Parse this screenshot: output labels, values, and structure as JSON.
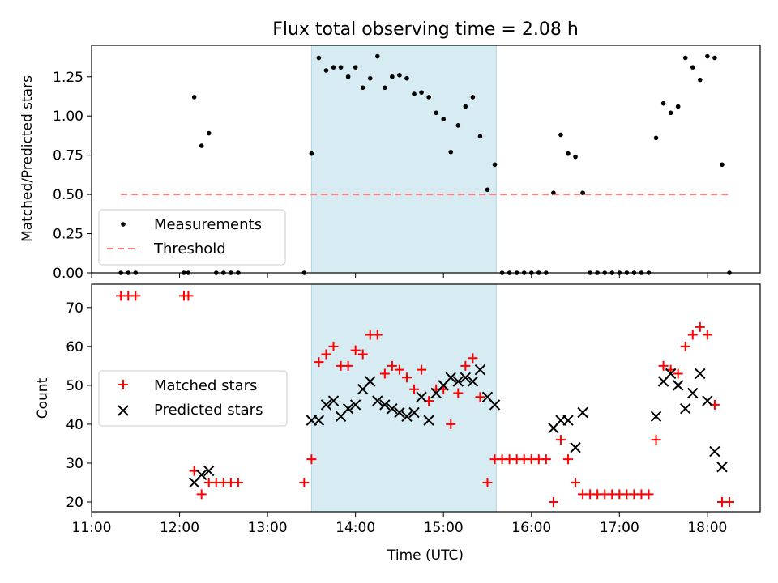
{
  "figure": {
    "title": "Flux total observing time = 2.08 h"
  },
  "colors": {
    "measurement": "#000000",
    "threshold": "#ff7f7f",
    "matched": "#ff0000",
    "predicted": "#000000",
    "shade": "#add8e6"
  },
  "chart_data": [
    {
      "type": "scatter",
      "title": "Flux total observing time = 2.08 h",
      "xlabel": "",
      "ylabel": "Matched/Predicted stars",
      "xlim": [
        "11:00",
        "18:36"
      ],
      "ylim": [
        0,
        1.45
      ],
      "yticks": [
        "0.00",
        "0.25",
        "0.50",
        "0.75",
        "1.00",
        "1.25"
      ],
      "xticks": [
        "11:00",
        "12:00",
        "13:00",
        "14:00",
        "15:00",
        "16:00",
        "17:00",
        "18:00"
      ],
      "shaded_interval": [
        "13:30",
        "15:36"
      ],
      "legend": {
        "position": "lower-left",
        "entries": [
          "Measurements",
          "Threshold"
        ]
      },
      "series": [
        {
          "name": "Measurements",
          "marker": "dot",
          "points": [
            [
              "11:20",
              0
            ],
            [
              "11:25",
              0
            ],
            [
              "11:30",
              0
            ],
            [
              "12:03",
              0
            ],
            [
              "12:06",
              0
            ],
            [
              "12:10",
              1.12
            ],
            [
              "12:15",
              0.81
            ],
            [
              "12:20",
              0.89
            ],
            [
              "12:25",
              0
            ],
            [
              "12:30",
              0
            ],
            [
              "12:35",
              0
            ],
            [
              "12:40",
              0
            ],
            [
              "13:25",
              0
            ],
            [
              "13:30",
              0.76
            ],
            [
              "13:35",
              1.37
            ],
            [
              "13:40",
              1.29
            ],
            [
              "13:45",
              1.31
            ],
            [
              "13:50",
              1.31
            ],
            [
              "13:55",
              1.25
            ],
            [
              "14:00",
              1.31
            ],
            [
              "14:05",
              1.18
            ],
            [
              "14:10",
              1.24
            ],
            [
              "14:15",
              1.38
            ],
            [
              "14:20",
              1.18
            ],
            [
              "14:25",
              1.25
            ],
            [
              "14:30",
              1.26
            ],
            [
              "14:35",
              1.24
            ],
            [
              "14:40",
              1.14
            ],
            [
              "14:45",
              1.15
            ],
            [
              "14:50",
              1.12
            ],
            [
              "14:55",
              1.02
            ],
            [
              "15:00",
              0.98
            ],
            [
              "15:05",
              0.77
            ],
            [
              "15:10",
              0.94
            ],
            [
              "15:15",
              1.06
            ],
            [
              "15:20",
              1.12
            ],
            [
              "15:25",
              0.87
            ],
            [
              "15:30",
              0.53
            ],
            [
              "15:35",
              0.69
            ],
            [
              "15:40",
              0
            ],
            [
              "15:45",
              0
            ],
            [
              "15:50",
              0
            ],
            [
              "15:55",
              0
            ],
            [
              "16:00",
              0
            ],
            [
              "16:05",
              0
            ],
            [
              "16:10",
              0
            ],
            [
              "16:15",
              0.51
            ],
            [
              "16:20",
              0.88
            ],
            [
              "16:25",
              0.76
            ],
            [
              "16:30",
              0.74
            ],
            [
              "16:35",
              0.51
            ],
            [
              "16:40",
              0
            ],
            [
              "16:45",
              0
            ],
            [
              "16:50",
              0
            ],
            [
              "16:55",
              0
            ],
            [
              "17:00",
              0
            ],
            [
              "17:05",
              0
            ],
            [
              "17:10",
              0
            ],
            [
              "17:15",
              0
            ],
            [
              "17:20",
              0
            ],
            [
              "17:25",
              0.86
            ],
            [
              "17:30",
              1.08
            ],
            [
              "17:35",
              1.02
            ],
            [
              "17:40",
              1.06
            ],
            [
              "17:45",
              1.37
            ],
            [
              "17:50",
              1.31
            ],
            [
              "17:55",
              1.23
            ],
            [
              "18:00",
              1.38
            ],
            [
              "18:05",
              1.37
            ],
            [
              "18:10",
              0.69
            ],
            [
              "18:15",
              0
            ]
          ]
        },
        {
          "name": "Threshold",
          "style": "dashed-line",
          "points": [
            [
              "11:20",
              0.5
            ],
            [
              "18:15",
              0.5
            ]
          ]
        }
      ]
    },
    {
      "type": "scatter",
      "title": "",
      "xlabel": "Time (UTC)",
      "ylabel": "Count",
      "xlim": [
        "11:00",
        "18:36"
      ],
      "ylim": [
        17.5,
        76
      ],
      "yticks": [
        "20",
        "30",
        "40",
        "50",
        "60",
        "70"
      ],
      "xticks": [
        "11:00",
        "12:00",
        "13:00",
        "14:00",
        "15:00",
        "16:00",
        "17:00",
        "18:00"
      ],
      "shaded_interval": [
        "13:30",
        "15:36"
      ],
      "legend": {
        "position": "center-left",
        "entries": [
          "Matched stars",
          "Predicted stars"
        ]
      },
      "series": [
        {
          "name": "Matched stars",
          "marker": "plus",
          "points": [
            [
              "11:20",
              73
            ],
            [
              "11:25",
              73
            ],
            [
              "11:30",
              73
            ],
            [
              "12:03",
              73
            ],
            [
              "12:06",
              73
            ],
            [
              "12:10",
              28
            ],
            [
              "12:15",
              22
            ],
            [
              "12:20",
              25
            ],
            [
              "12:25",
              25
            ],
            [
              "12:30",
              25
            ],
            [
              "12:35",
              25
            ],
            [
              "12:40",
              25
            ],
            [
              "13:25",
              25
            ],
            [
              "13:30",
              31
            ],
            [
              "13:35",
              56
            ],
            [
              "13:40",
              58
            ],
            [
              "13:45",
              60
            ],
            [
              "13:50",
              55
            ],
            [
              "13:55",
              55
            ],
            [
              "14:00",
              59
            ],
            [
              "14:05",
              58
            ],
            [
              "14:10",
              63
            ],
            [
              "14:15",
              63
            ],
            [
              "14:20",
              53
            ],
            [
              "14:25",
              55
            ],
            [
              "14:30",
              54
            ],
            [
              "14:35",
              52
            ],
            [
              "14:40",
              49
            ],
            [
              "14:45",
              54
            ],
            [
              "14:50",
              46
            ],
            [
              "14:55",
              49
            ],
            [
              "15:00",
              49
            ],
            [
              "15:05",
              40
            ],
            [
              "15:10",
              48
            ],
            [
              "15:15",
              55
            ],
            [
              "15:20",
              57
            ],
            [
              "15:25",
              47
            ],
            [
              "15:30",
              25
            ],
            [
              "15:35",
              31
            ],
            [
              "15:40",
              31
            ],
            [
              "15:45",
              31
            ],
            [
              "15:50",
              31
            ],
            [
              "15:55",
              31
            ],
            [
              "16:00",
              31
            ],
            [
              "16:05",
              31
            ],
            [
              "16:10",
              31
            ],
            [
              "16:15",
              20
            ],
            [
              "16:20",
              36
            ],
            [
              "16:25",
              31
            ],
            [
              "16:30",
              25
            ],
            [
              "16:35",
              22
            ],
            [
              "16:40",
              22
            ],
            [
              "16:45",
              22
            ],
            [
              "16:50",
              22
            ],
            [
              "16:55",
              22
            ],
            [
              "17:00",
              22
            ],
            [
              "17:05",
              22
            ],
            [
              "17:10",
              22
            ],
            [
              "17:15",
              22
            ],
            [
              "17:20",
              22
            ],
            [
              "17:25",
              36
            ],
            [
              "17:30",
              55
            ],
            [
              "17:35",
              54
            ],
            [
              "17:40",
              53
            ],
            [
              "17:45",
              60
            ],
            [
              "17:50",
              63
            ],
            [
              "17:55",
              65
            ],
            [
              "18:00",
              63
            ],
            [
              "18:05",
              45
            ],
            [
              "18:10",
              20
            ],
            [
              "18:15",
              20
            ]
          ]
        },
        {
          "name": "Predicted stars",
          "marker": "x",
          "points": [
            [
              "12:10",
              25
            ],
            [
              "12:15",
              27
            ],
            [
              "12:20",
              28
            ],
            [
              "13:30",
              41
            ],
            [
              "13:35",
              41
            ],
            [
              "13:40",
              45
            ],
            [
              "13:45",
              46
            ],
            [
              "13:50",
              42
            ],
            [
              "13:55",
              44
            ],
            [
              "14:00",
              45
            ],
            [
              "14:05",
              49
            ],
            [
              "14:10",
              51
            ],
            [
              "14:15",
              46
            ],
            [
              "14:20",
              45
            ],
            [
              "14:25",
              44
            ],
            [
              "14:30",
              43
            ],
            [
              "14:35",
              42
            ],
            [
              "14:40",
              43
            ],
            [
              "14:45",
              47
            ],
            [
              "14:50",
              41
            ],
            [
              "14:55",
              48
            ],
            [
              "15:00",
              50
            ],
            [
              "15:05",
              52
            ],
            [
              "15:10",
              51
            ],
            [
              "15:15",
              52
            ],
            [
              "15:20",
              51
            ],
            [
              "15:25",
              54
            ],
            [
              "15:30",
              47
            ],
            [
              "15:35",
              45
            ],
            [
              "16:15",
              39
            ],
            [
              "16:20",
              41
            ],
            [
              "16:25",
              41
            ],
            [
              "16:30",
              34
            ],
            [
              "16:35",
              43
            ],
            [
              "17:25",
              42
            ],
            [
              "17:30",
              51
            ],
            [
              "17:35",
              53
            ],
            [
              "17:40",
              50
            ],
            [
              "17:45",
              44
            ],
            [
              "17:50",
              48
            ],
            [
              "17:55",
              53
            ],
            [
              "18:00",
              46
            ],
            [
              "18:05",
              33
            ],
            [
              "18:10",
              29
            ]
          ]
        }
      ]
    }
  ]
}
